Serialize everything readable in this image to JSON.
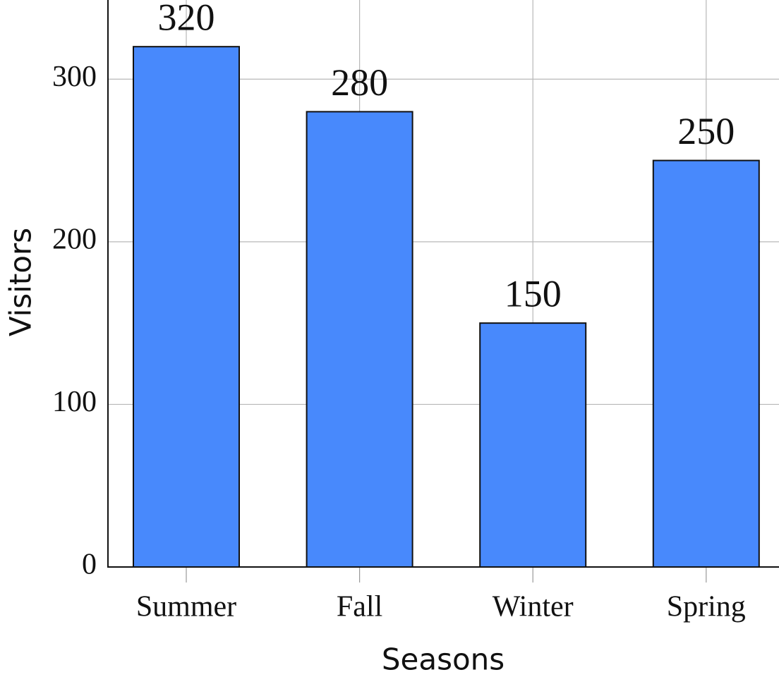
{
  "chart_data": {
    "type": "bar",
    "xlabel": "Seasons",
    "ylabel": "Visitors",
    "categories": [
      "Summer",
      "Fall",
      "Winter",
      "Spring"
    ],
    "values": [
      320,
      280,
      150,
      250
    ],
    "color": "#4889fc",
    "ylim": [
      0,
      350
    ],
    "yticks": [
      0,
      100,
      200,
      300
    ],
    "grid": true
  }
}
